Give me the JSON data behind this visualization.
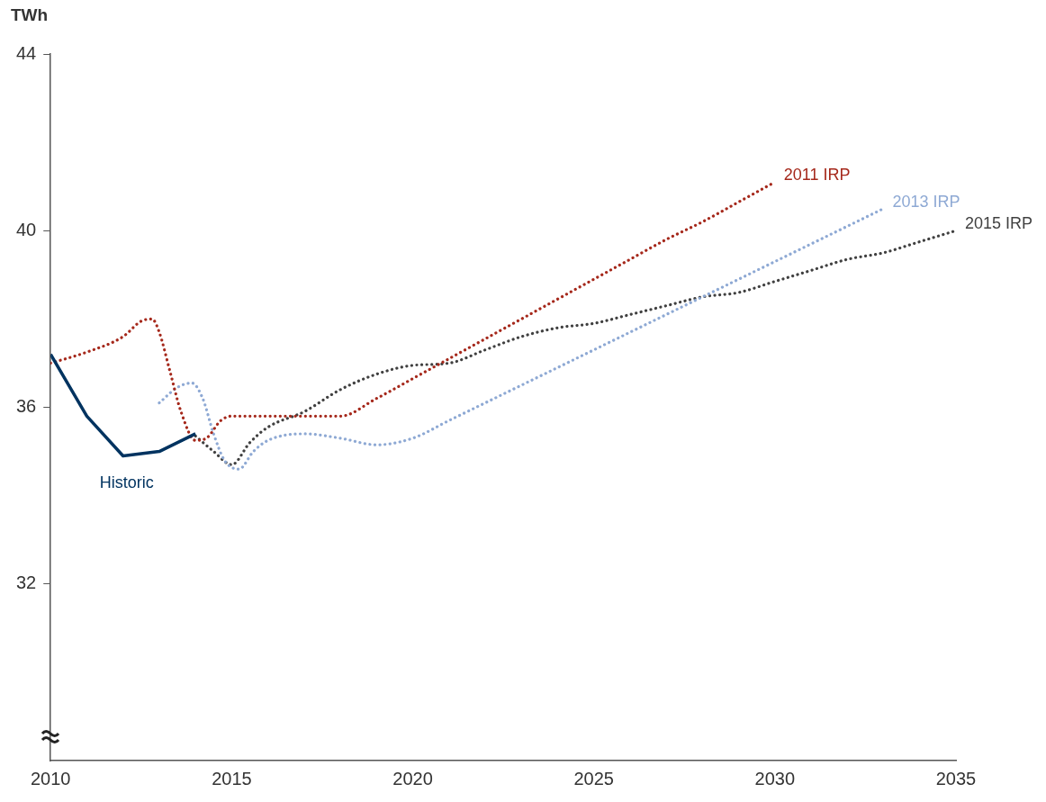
{
  "chart_data": {
    "type": "line",
    "ylabel": "TWh",
    "xlim": [
      2010,
      2035
    ],
    "xticks": [
      2010,
      2015,
      2020,
      2025,
      2030,
      2035
    ],
    "ylim": [
      28,
      44
    ],
    "yticks": [
      32,
      36,
      40,
      44
    ],
    "grid": false,
    "legend": false,
    "marker": "none",
    "series": [
      {
        "name": "Historic",
        "color": "#003360",
        "line_style": "solid",
        "x": [
          2010,
          2011,
          2012,
          2013,
          2014
        ],
        "values": [
          37.2,
          35.8,
          34.9,
          35.0,
          35.4
        ]
      },
      {
        "name": "2011 IRP",
        "color": "#a5281b",
        "line_style": "dotted",
        "x": [
          2010,
          2011,
          2012,
          2012.5,
          2012.8,
          2013,
          2013.3,
          2013.6,
          2014,
          2014.3,
          2014.7,
          2015,
          2016,
          2017,
          2018,
          2019,
          2020,
          2021,
          2022,
          2023,
          2024,
          2025,
          2026,
          2027,
          2028,
          2029,
          2030
        ],
        "values": [
          37.0,
          37.25,
          37.6,
          37.95,
          38.0,
          37.7,
          36.8,
          35.9,
          35.25,
          35.3,
          35.7,
          35.8,
          35.8,
          35.8,
          35.8,
          36.2,
          36.65,
          37.1,
          37.55,
          38.0,
          38.45,
          38.9,
          39.35,
          39.8,
          40.2,
          40.65,
          41.1
        ]
      },
      {
        "name": "2013 IRP",
        "color": "#8ea9d4",
        "line_style": "dotted",
        "x": [
          2013,
          2013.5,
          2013.9,
          2014.2,
          2014.5,
          2014.8,
          2015.2,
          2015.6,
          2016,
          2017,
          2018,
          2019,
          2020,
          2021,
          2022,
          2023,
          2024,
          2025,
          2026,
          2027,
          2028,
          2029,
          2030,
          2031,
          2032,
          2033
        ],
        "values": [
          36.1,
          36.45,
          36.55,
          36.2,
          35.4,
          34.8,
          34.6,
          35.0,
          35.25,
          35.4,
          35.3,
          35.15,
          35.3,
          35.7,
          36.1,
          36.5,
          36.9,
          37.3,
          37.7,
          38.1,
          38.5,
          38.9,
          39.3,
          39.7,
          40.1,
          40.5
        ]
      },
      {
        "name": "2015 IRP",
        "color": "#404040",
        "line_style": "dotted",
        "x": [
          2014,
          2014.5,
          2015,
          2015.5,
          2016,
          2017,
          2018,
          2019,
          2020,
          2021,
          2022,
          2023,
          2024,
          2025,
          2026,
          2027,
          2028,
          2029,
          2030,
          2031,
          2032,
          2033,
          2034,
          2035
        ],
        "values": [
          35.35,
          35.0,
          34.7,
          35.2,
          35.55,
          35.9,
          36.4,
          36.75,
          36.95,
          37.0,
          37.3,
          37.6,
          37.8,
          37.9,
          38.1,
          38.3,
          38.5,
          38.6,
          38.85,
          39.1,
          39.35,
          39.5,
          39.75,
          40.0
        ]
      }
    ]
  }
}
